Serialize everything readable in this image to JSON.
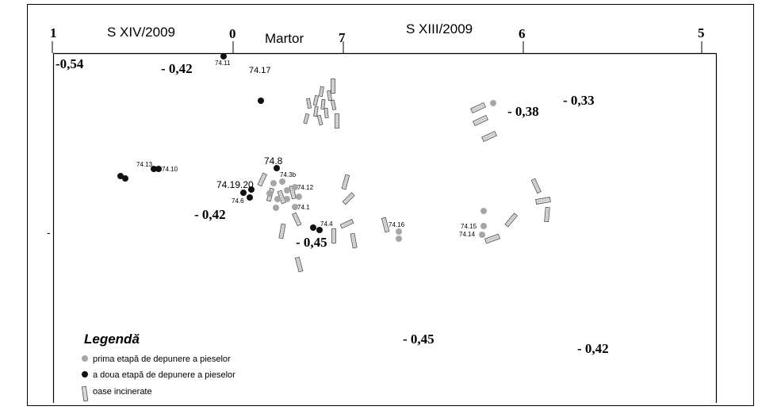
{
  "colors": {
    "gray_dot": "#a6a6a6",
    "black_dot": "#111111",
    "bone_fill": "#d9d9d9",
    "bone_stroke": "#4d4d4d",
    "frame": "#000000"
  },
  "header": {
    "axis_ticks": [
      "1",
      "0",
      "7",
      "6",
      "5"
    ],
    "section_left": "S XIV/2009",
    "section_martor": "Martor",
    "section_right": "S XIII/2009"
  },
  "left_tick_mark": "-",
  "depths": [
    "-0,54",
    "- 0,42",
    "- 0,38",
    "- 0,33",
    "- 0,42",
    "- 0,45",
    "- 0,45",
    "- 0,42"
  ],
  "labels": [
    "74.11",
    "74.17",
    "74.13",
    "74.10",
    "74.8",
    "74.3b",
    "74.19.20",
    "74.12",
    "74.6",
    "74.1",
    "74.4",
    "74.16",
    "74.15",
    "74.14"
  ],
  "legend": {
    "title": "Legendă",
    "items": [
      {
        "icon": "gray-dot-icon",
        "label": "prima etapă de depunere a pieselor"
      },
      {
        "icon": "black-dot-icon",
        "label": "a doua etapă de depunere a pieselor"
      },
      {
        "icon": "bone-fragment-icon",
        "label": "oase incinerate"
      }
    ]
  }
}
